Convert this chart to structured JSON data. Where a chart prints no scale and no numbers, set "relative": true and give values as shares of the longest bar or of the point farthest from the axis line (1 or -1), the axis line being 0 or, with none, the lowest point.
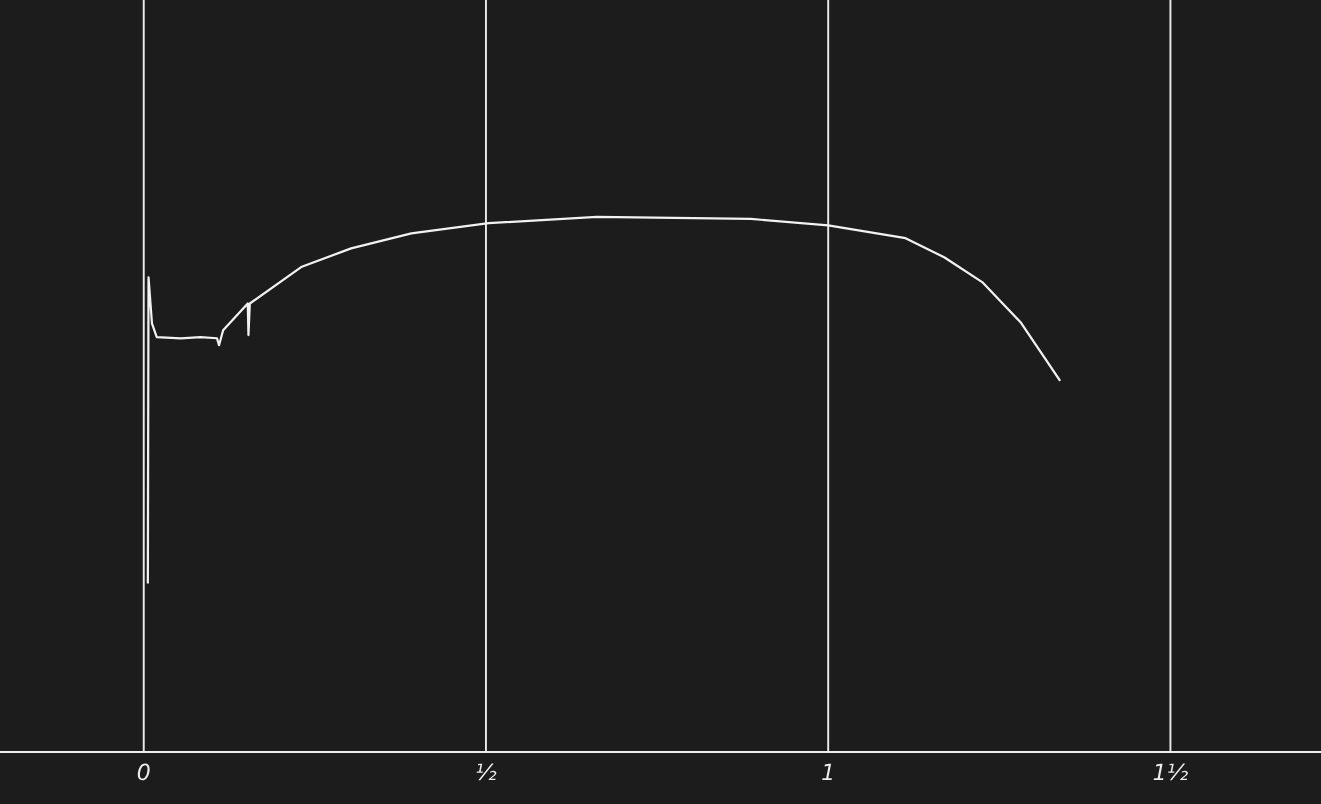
{
  "chart_data": {
    "type": "line",
    "relative": true,
    "xlim": [
      -0.21,
      1.72
    ],
    "xticks": [
      0,
      {
        "value": 0.5,
        "label": "½"
      },
      1,
      {
        "value": 1.5,
        "label": "1½"
      }
    ],
    "grid": "x",
    "marker": "none",
    "line_style": "solid",
    "series": [
      {
        "color": "#f2f2f2",
        "x": [
          0.006,
          0.007,
          0.012,
          0.019,
          0.054,
          0.083,
          0.107,
          0.11,
          0.116,
          0.152,
          0.153,
          0.155,
          0.23,
          0.303,
          0.391,
          0.504,
          0.662,
          0.887,
          1.0,
          1.113,
          1.17,
          1.225,
          1.281,
          1.338
        ],
        "values": [
          0.317,
          0.887,
          0.801,
          0.775,
          0.773,
          0.775,
          0.773,
          0.76,
          0.788,
          0.838,
          0.779,
          0.838,
          0.906,
          0.941,
          0.969,
          0.988,
          1.0,
          0.996,
          0.984,
          0.96,
          0.924,
          0.878,
          0.803,
          0.695
        ]
      }
    ]
  }
}
